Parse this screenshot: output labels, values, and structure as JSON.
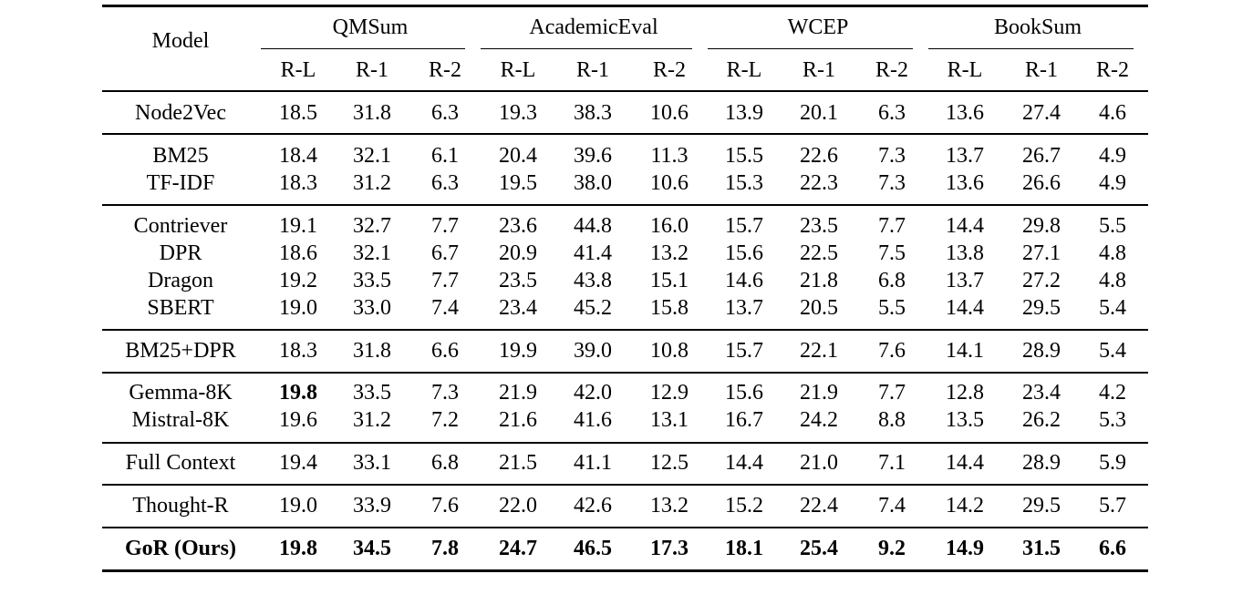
{
  "table": {
    "model_header": "Model",
    "datasets": [
      "QMSum",
      "AcademicEval",
      "WCEP",
      "BookSum"
    ],
    "metrics": [
      "R-L",
      "R-1",
      "R-2"
    ],
    "rows": [
      {
        "model": "Node2Vec",
        "group": 0,
        "values": [
          "18.5",
          "31.8",
          "6.3",
          "19.3",
          "38.3",
          "10.6",
          "13.9",
          "20.1",
          "6.3",
          "13.6",
          "27.4",
          "4.6"
        ]
      },
      {
        "model": "BM25",
        "group": 1,
        "values": [
          "18.4",
          "32.1",
          "6.1",
          "20.4",
          "39.6",
          "11.3",
          "15.5",
          "22.6",
          "7.3",
          "13.7",
          "26.7",
          "4.9"
        ]
      },
      {
        "model": "TF-IDF",
        "group": 1,
        "values": [
          "18.3",
          "31.2",
          "6.3",
          "19.5",
          "38.0",
          "10.6",
          "15.3",
          "22.3",
          "7.3",
          "13.6",
          "26.6",
          "4.9"
        ]
      },
      {
        "model": "Contriever",
        "group": 2,
        "values": [
          "19.1",
          "32.7",
          "7.7",
          "23.6",
          "44.8",
          "16.0",
          "15.7",
          "23.5",
          "7.7",
          "14.4",
          "29.8",
          "5.5"
        ]
      },
      {
        "model": "DPR",
        "group": 2,
        "values": [
          "18.6",
          "32.1",
          "6.7",
          "20.9",
          "41.4",
          "13.2",
          "15.6",
          "22.5",
          "7.5",
          "13.8",
          "27.1",
          "4.8"
        ]
      },
      {
        "model": "Dragon",
        "group": 2,
        "values": [
          "19.2",
          "33.5",
          "7.7",
          "23.5",
          "43.8",
          "15.1",
          "14.6",
          "21.8",
          "6.8",
          "13.7",
          "27.2",
          "4.8"
        ]
      },
      {
        "model": "SBERT",
        "group": 2,
        "values": [
          "19.0",
          "33.0",
          "7.4",
          "23.4",
          "45.2",
          "15.8",
          "13.7",
          "20.5",
          "5.5",
          "14.4",
          "29.5",
          "5.4"
        ]
      },
      {
        "model": "BM25+DPR",
        "group": 3,
        "values": [
          "18.3",
          "31.8",
          "6.6",
          "19.9",
          "39.0",
          "10.8",
          "15.7",
          "22.1",
          "7.6",
          "14.1",
          "28.9",
          "5.4"
        ]
      },
      {
        "model": "Gemma-8K",
        "group": 4,
        "values": [
          "19.8",
          "33.5",
          "7.3",
          "21.9",
          "42.0",
          "12.9",
          "15.6",
          "21.9",
          "7.7",
          "12.8",
          "23.4",
          "4.2"
        ],
        "bold_cells": [
          0
        ]
      },
      {
        "model": "Mistral-8K",
        "group": 4,
        "values": [
          "19.6",
          "31.2",
          "7.2",
          "21.6",
          "41.6",
          "13.1",
          "16.7",
          "24.2",
          "8.8",
          "13.5",
          "26.2",
          "5.3"
        ]
      },
      {
        "model": "Full Context",
        "group": 5,
        "values": [
          "19.4",
          "33.1",
          "6.8",
          "21.5",
          "41.1",
          "12.5",
          "14.4",
          "21.0",
          "7.1",
          "14.4",
          "28.9",
          "5.9"
        ]
      },
      {
        "model": "Thought-R",
        "group": 6,
        "values": [
          "19.0",
          "33.9",
          "7.6",
          "22.0",
          "42.6",
          "13.2",
          "15.2",
          "22.4",
          "7.4",
          "14.2",
          "29.5",
          "5.7"
        ]
      },
      {
        "model": "GoR (Ours)",
        "group": 7,
        "values": [
          "19.8",
          "34.5",
          "7.8",
          "24.7",
          "46.5",
          "17.3",
          "18.1",
          "25.4",
          "9.2",
          "14.9",
          "31.5",
          "6.6"
        ],
        "bold_row": true
      }
    ]
  },
  "chart_data": {
    "type": "table",
    "title": "",
    "columns": [
      "Model",
      "QMSum R-L",
      "QMSum R-1",
      "QMSum R-2",
      "AcademicEval R-L",
      "AcademicEval R-1",
      "AcademicEval R-2",
      "WCEP R-L",
      "WCEP R-1",
      "WCEP R-2",
      "BookSum R-L",
      "BookSum R-1",
      "BookSum R-2"
    ],
    "rows": [
      [
        "Node2Vec",
        18.5,
        31.8,
        6.3,
        19.3,
        38.3,
        10.6,
        13.9,
        20.1,
        6.3,
        13.6,
        27.4,
        4.6
      ],
      [
        "BM25",
        18.4,
        32.1,
        6.1,
        20.4,
        39.6,
        11.3,
        15.5,
        22.6,
        7.3,
        13.7,
        26.7,
        4.9
      ],
      [
        "TF-IDF",
        18.3,
        31.2,
        6.3,
        19.5,
        38.0,
        10.6,
        15.3,
        22.3,
        7.3,
        13.6,
        26.6,
        4.9
      ],
      [
        "Contriever",
        19.1,
        32.7,
        7.7,
        23.6,
        44.8,
        16.0,
        15.7,
        23.5,
        7.7,
        14.4,
        29.8,
        5.5
      ],
      [
        "DPR",
        18.6,
        32.1,
        6.7,
        20.9,
        41.4,
        13.2,
        15.6,
        22.5,
        7.5,
        13.8,
        27.1,
        4.8
      ],
      [
        "Dragon",
        19.2,
        33.5,
        7.7,
        23.5,
        43.8,
        15.1,
        14.6,
        21.8,
        6.8,
        13.7,
        27.2,
        4.8
      ],
      [
        "SBERT",
        19.0,
        33.0,
        7.4,
        23.4,
        45.2,
        15.8,
        13.7,
        20.5,
        5.5,
        14.4,
        29.5,
        5.4
      ],
      [
        "BM25+DPR",
        18.3,
        31.8,
        6.6,
        19.9,
        39.0,
        10.8,
        15.7,
        22.1,
        7.6,
        14.1,
        28.9,
        5.4
      ],
      [
        "Gemma-8K",
        19.8,
        33.5,
        7.3,
        21.9,
        42.0,
        12.9,
        15.6,
        21.9,
        7.7,
        12.8,
        23.4,
        4.2
      ],
      [
        "Mistral-8K",
        19.6,
        31.2,
        7.2,
        21.6,
        41.6,
        13.1,
        16.7,
        24.2,
        8.8,
        13.5,
        26.2,
        5.3
      ],
      [
        "Full Context",
        19.4,
        33.1,
        6.8,
        21.5,
        41.1,
        12.5,
        14.4,
        21.0,
        7.1,
        14.4,
        28.9,
        5.9
      ],
      [
        "Thought-R",
        19.0,
        33.9,
        7.6,
        22.0,
        42.6,
        13.2,
        15.2,
        22.4,
        7.4,
        14.2,
        29.5,
        5.7
      ],
      [
        "GoR (Ours)",
        19.8,
        34.5,
        7.8,
        24.7,
        46.5,
        17.3,
        18.1,
        25.4,
        9.2,
        14.9,
        31.5,
        6.6
      ]
    ],
    "bold": [
      "Gemma-8K QMSum R-L",
      "GoR (Ours) row"
    ]
  }
}
